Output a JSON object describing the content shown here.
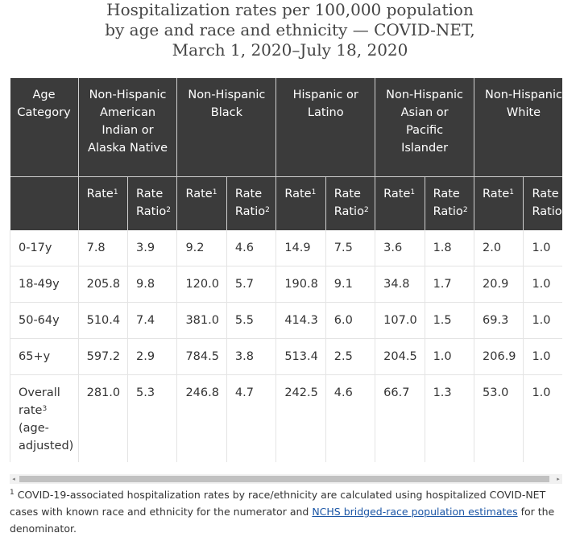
{
  "title": {
    "line1": "Hospitalization rates per 100,000 population",
    "line2": "by age and race and ethnicity — COVID-NET,",
    "line3": "March 1, 2020–July 18, 2020"
  },
  "table": {
    "age_header": [
      "Age",
      "Category"
    ],
    "groups": [
      {
        "lines": [
          "Non-Hispanic",
          "American",
          "Indian or",
          "Alaska Native"
        ]
      },
      {
        "lines": [
          "Non-Hispanic",
          "Black"
        ]
      },
      {
        "lines": [
          "Hispanic or",
          "Latino"
        ]
      },
      {
        "lines": [
          "Non-Hispanic",
          "Asian or",
          "Pacific",
          "Islander"
        ]
      },
      {
        "lines": [
          "Non-Hispanic",
          "White"
        ]
      }
    ],
    "rate_label": "Rate",
    "rate_sup": "1",
    "ratio_label_1": "Rate",
    "ratio_label_2": "Ratio",
    "ratio_sup": "2",
    "rows": [
      {
        "label": "0-17y",
        "values": [
          "7.8",
          "3.9",
          "9.2",
          "4.6",
          "14.9",
          "7.5",
          "3.6",
          "1.8",
          "2.0",
          "1.0"
        ]
      },
      {
        "label": "18-49y",
        "values": [
          "205.8",
          "9.8",
          "120.0",
          "5.7",
          "190.8",
          "9.1",
          "34.8",
          "1.7",
          "20.9",
          "1.0"
        ]
      },
      {
        "label": "50-64y",
        "values": [
          "510.4",
          "7.4",
          "381.0",
          "5.5",
          "414.3",
          "6.0",
          "107.0",
          "1.5",
          "69.3",
          "1.0"
        ]
      },
      {
        "label": "65+y",
        "values": [
          "597.2",
          "2.9",
          "784.5",
          "3.8",
          "513.4",
          "2.5",
          "204.5",
          "1.0",
          "206.9",
          "1.0"
        ]
      }
    ],
    "overall": {
      "label_line1": "Overall",
      "label_line2": "rate",
      "label_sup": "3",
      "label_line3": "(age-",
      "label_line4": "adjusted)",
      "values": [
        "281.0",
        "5.3",
        "246.8",
        "4.7",
        "242.5",
        "4.6",
        "66.7",
        "1.3",
        "53.0",
        "1.0"
      ]
    }
  },
  "scrollbar": {
    "left_arrow": "◂",
    "right_arrow": "▸"
  },
  "footnote": {
    "sup": "1",
    "text_before": " COVID-19-associated hospitalization rates by race/ethnicity are calculated using hospitalized COVID-NET cases with known race and ethnicity for the numerator and ",
    "link": "NCHS bridged-race population estimates",
    "text_after": " for the denominator."
  },
  "colors": {
    "header_bg": "#3b3b3b",
    "link": "#1a55a5",
    "border": "#e4e4e4"
  }
}
